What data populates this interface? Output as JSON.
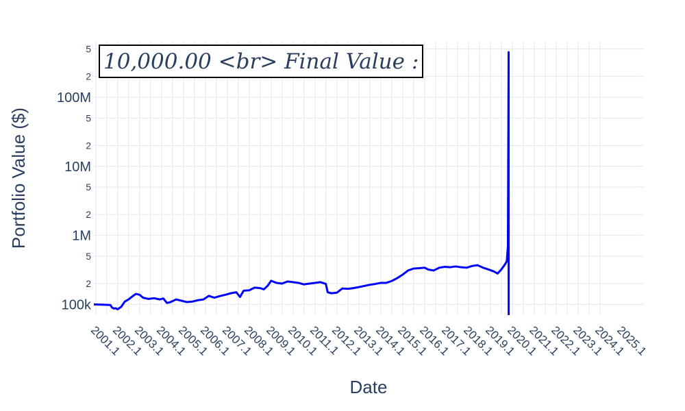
{
  "chart_data": {
    "type": "line",
    "title": "",
    "xlabel": "Date",
    "ylabel": "Portfolio Value ($)",
    "y_scale": "log",
    "ylim": [
      70000,
      650000000
    ],
    "xlim": [
      "2000-12-01",
      "2026-01-01"
    ],
    "grid": true,
    "annotation": "10,000.00 <br> Final Value :",
    "x_tick_labels": [
      "2001.1",
      "2002.1",
      "2003.1",
      "2004.1",
      "2005.1",
      "2006.1",
      "2007.1",
      "2008.1",
      "2009.1",
      "2010.1",
      "2011.1",
      "2012.1",
      "2013.1",
      "2014.1",
      "2015.1",
      "2016.1",
      "2017.1",
      "2018.1",
      "2019.1",
      "2020.1",
      "2021.1",
      "2022.1",
      "2023.1",
      "2024.1",
      "2025.1"
    ],
    "y_major_tick_labels": [
      {
        "value": 100000,
        "label": "100k"
      },
      {
        "value": 1000000,
        "label": "1M"
      },
      {
        "value": 10000000,
        "label": "10M"
      },
      {
        "value": 100000000,
        "label": "100M"
      }
    ],
    "y_minor_tick_labels": [
      {
        "value": 200000,
        "label": "2"
      },
      {
        "value": 500000,
        "label": "5"
      },
      {
        "value": 2000000,
        "label": "2"
      },
      {
        "value": 5000000,
        "label": "5"
      },
      {
        "value": 20000000,
        "label": "2"
      },
      {
        "value": 50000000,
        "label": "5"
      },
      {
        "value": 200000000,
        "label": "2"
      },
      {
        "value": 500000000,
        "label": "5"
      }
    ],
    "series": [
      {
        "color": "#0000ff",
        "points": [
          [
            "2000-12-01",
            100000
          ],
          [
            "2001-06-01",
            99000
          ],
          [
            "2001-09-01",
            98000
          ],
          [
            "2001-10-01",
            90000
          ],
          [
            "2001-11-01",
            87000
          ],
          [
            "2001-12-01",
            88000
          ],
          [
            "2002-01-01",
            85000
          ],
          [
            "2002-03-01",
            92000
          ],
          [
            "2002-05-01",
            110000
          ],
          [
            "2002-07-01",
            118000
          ],
          [
            "2002-09-01",
            130000
          ],
          [
            "2002-11-01",
            142000
          ],
          [
            "2003-01-01",
            138000
          ],
          [
            "2003-03-01",
            125000
          ],
          [
            "2003-06-01",
            120000
          ],
          [
            "2003-09-01",
            123000
          ],
          [
            "2003-12-01",
            118000
          ],
          [
            "2004-02-01",
            122000
          ],
          [
            "2004-04-01",
            105000
          ],
          [
            "2004-06-01",
            108000
          ],
          [
            "2004-09-01",
            118000
          ],
          [
            "2004-12-01",
            113000
          ],
          [
            "2005-03-01",
            108000
          ],
          [
            "2005-06-01",
            110000
          ],
          [
            "2005-09-01",
            115000
          ],
          [
            "2005-12-01",
            118000
          ],
          [
            "2006-03-01",
            133000
          ],
          [
            "2006-06-01",
            125000
          ],
          [
            "2006-09-01",
            132000
          ],
          [
            "2006-12-01",
            138000
          ],
          [
            "2007-03-01",
            145000
          ],
          [
            "2007-06-01",
            150000
          ],
          [
            "2007-08-01",
            128000
          ],
          [
            "2007-10-01",
            158000
          ],
          [
            "2008-01-01",
            160000
          ],
          [
            "2008-04-01",
            175000
          ],
          [
            "2008-07-01",
            172000
          ],
          [
            "2008-09-01",
            165000
          ],
          [
            "2008-11-01",
            185000
          ],
          [
            "2009-01-01",
            220000
          ],
          [
            "2009-04-01",
            205000
          ],
          [
            "2009-07-01",
            200000
          ],
          [
            "2009-10-01",
            215000
          ],
          [
            "2010-01-01",
            210000
          ],
          [
            "2010-04-01",
            205000
          ],
          [
            "2010-07-01",
            195000
          ],
          [
            "2010-10-01",
            200000
          ],
          [
            "2011-01-01",
            205000
          ],
          [
            "2011-04-01",
            210000
          ],
          [
            "2011-07-01",
            198000
          ],
          [
            "2011-08-01",
            150000
          ],
          [
            "2011-10-01",
            145000
          ],
          [
            "2012-01-01",
            148000
          ],
          [
            "2012-04-01",
            170000
          ],
          [
            "2012-07-01",
            168000
          ],
          [
            "2012-10-01",
            172000
          ],
          [
            "2013-01-01",
            178000
          ],
          [
            "2013-04-01",
            185000
          ],
          [
            "2013-07-01",
            192000
          ],
          [
            "2013-10-01",
            198000
          ],
          [
            "2014-01-01",
            205000
          ],
          [
            "2014-04-01",
            205000
          ],
          [
            "2014-07-01",
            218000
          ],
          [
            "2014-10-01",
            240000
          ],
          [
            "2015-01-01",
            270000
          ],
          [
            "2015-04-01",
            310000
          ],
          [
            "2015-07-01",
            330000
          ],
          [
            "2015-10-01",
            335000
          ],
          [
            "2016-01-01",
            340000
          ],
          [
            "2016-03-01",
            320000
          ],
          [
            "2016-06-01",
            310000
          ],
          [
            "2016-09-01",
            340000
          ],
          [
            "2016-12-01",
            350000
          ],
          [
            "2017-03-01",
            345000
          ],
          [
            "2017-06-01",
            355000
          ],
          [
            "2017-09-01",
            345000
          ],
          [
            "2017-12-01",
            340000
          ],
          [
            "2018-03-01",
            360000
          ],
          [
            "2018-06-01",
            370000
          ],
          [
            "2018-09-01",
            340000
          ],
          [
            "2018-12-01",
            320000
          ],
          [
            "2019-03-01",
            300000
          ],
          [
            "2019-05-01",
            280000
          ],
          [
            "2019-07-01",
            320000
          ],
          [
            "2019-09-01",
            380000
          ],
          [
            "2019-10-01",
            420000
          ],
          [
            "2019-10-20",
            700000
          ],
          [
            "2019-11-01",
            450000000
          ],
          [
            "2019-11-02",
            60000
          ]
        ]
      }
    ]
  }
}
